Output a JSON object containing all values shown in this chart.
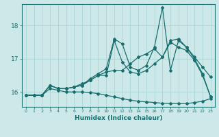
{
  "title": "",
  "xlabel": "Humidex (Indice chaleur)",
  "ylabel": "",
  "xlim": [
    -0.5,
    23.5
  ],
  "ylim": [
    15.55,
    18.65
  ],
  "yticks": [
    16,
    17,
    18
  ],
  "xticks": [
    0,
    1,
    2,
    3,
    4,
    5,
    6,
    7,
    8,
    9,
    10,
    11,
    12,
    13,
    14,
    15,
    16,
    17,
    18,
    19,
    20,
    21,
    22,
    23
  ],
  "bg_color": "#cce8e8",
  "line_color": "#1a6e6e",
  "grid_color": "#b0d8d8",
  "lines": [
    [
      15.9,
      15.9,
      15.9,
      16.2,
      16.1,
      16.1,
      16.15,
      16.2,
      16.35,
      16.5,
      16.5,
      17.55,
      16.9,
      16.6,
      16.55,
      16.65,
      16.85,
      17.05,
      17.5,
      17.35,
      17.25,
      16.95,
      16.5,
      15.85
    ],
    [
      15.9,
      15.9,
      15.9,
      16.2,
      16.1,
      16.1,
      16.15,
      16.2,
      16.4,
      16.55,
      16.7,
      17.6,
      17.45,
      16.75,
      16.65,
      16.8,
      17.35,
      18.55,
      16.65,
      17.55,
      17.35,
      17.0,
      16.55,
      15.85
    ],
    [
      15.9,
      15.9,
      15.9,
      16.2,
      16.1,
      16.1,
      16.15,
      16.25,
      16.35,
      16.5,
      16.6,
      16.65,
      16.65,
      16.85,
      17.05,
      17.15,
      17.3,
      17.05,
      17.55,
      17.6,
      17.35,
      17.05,
      16.75,
      16.45
    ],
    [
      15.9,
      15.9,
      15.9,
      16.1,
      16.05,
      16.0,
      16.0,
      16.0,
      15.98,
      15.95,
      15.9,
      15.85,
      15.8,
      15.75,
      15.72,
      15.7,
      15.68,
      15.66,
      15.65,
      15.65,
      15.65,
      15.68,
      15.72,
      15.8
    ]
  ],
  "marker": "D",
  "markersize": 2.0,
  "linewidth": 0.9
}
